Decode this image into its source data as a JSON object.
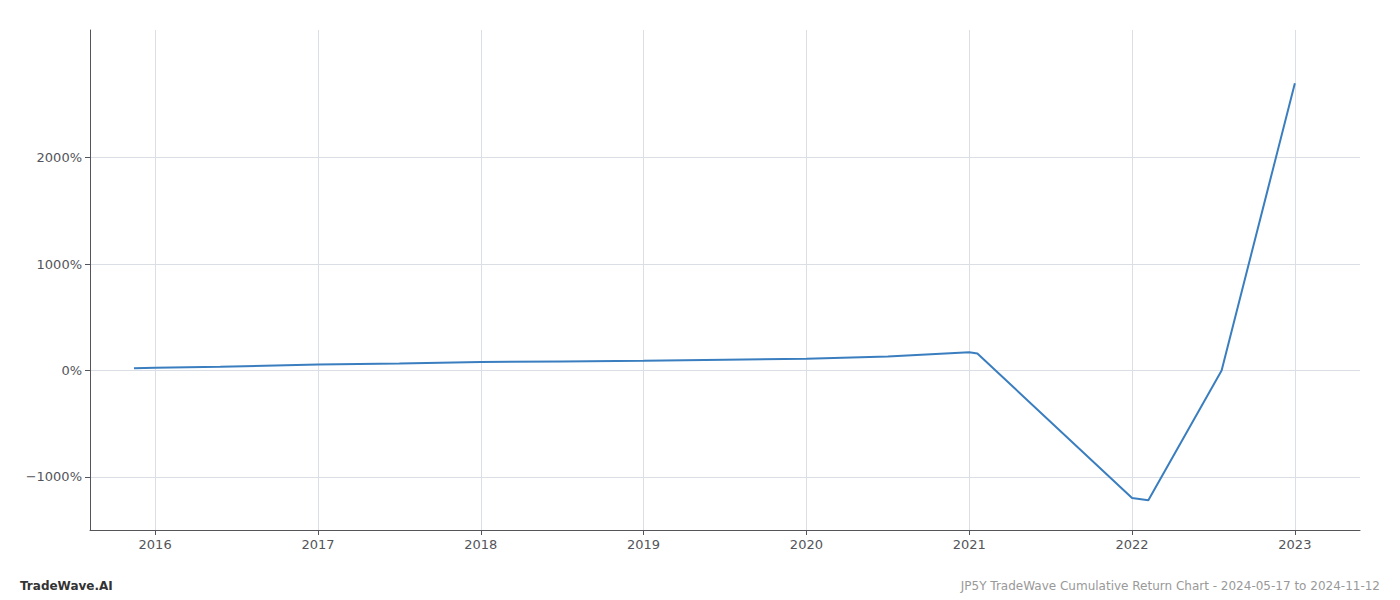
{
  "chart_data": {
    "type": "line",
    "annotations": [
      "TradeWave.AI",
      "JP5Y TradeWave Cumulative Return Chart - 2024-05-17 to 2024-11-12"
    ],
    "x": [
      2015.87,
      2016.0,
      2016.4,
      2017.0,
      2017.5,
      2018.0,
      2018.5,
      2019.0,
      2019.5,
      2020.0,
      2020.5,
      2021.0,
      2021.05,
      2022.0,
      2022.1,
      2022.55,
      2023.0
    ],
    "values": [
      20,
      25,
      35,
      55,
      65,
      80,
      85,
      90,
      100,
      110,
      130,
      170,
      160,
      -1200,
      -1220,
      0,
      2700
    ],
    "color": "#3a7ebf",
    "xlim": [
      2015.6,
      2023.4
    ],
    "xticks": [
      2016,
      2017,
      2018,
      2019,
      2020,
      2021,
      2022,
      2023
    ],
    "ylim": [
      -1500,
      3200
    ],
    "yticks": [
      {
        "value": -1000,
        "label": "−1000%"
      },
      {
        "value": 0,
        "label": "0%"
      },
      {
        "value": 1000,
        "label": "1000%"
      },
      {
        "value": 2000,
        "label": "2000%"
      }
    ],
    "grid": true
  }
}
